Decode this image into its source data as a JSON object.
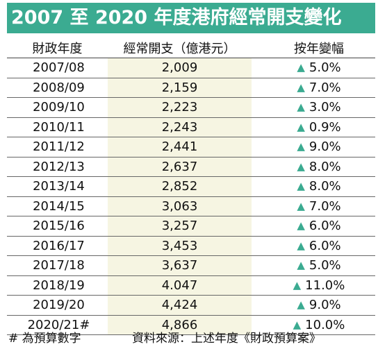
{
  "title": "2007 至 2020 年度港府經常開支變化",
  "headers": {
    "year": "財政年度",
    "amount": "經常開支（億港元）",
    "change": "按年變幅"
  },
  "change_icon": "triangle-up-icon",
  "accent_color": "#3bab91",
  "rows": [
    {
      "year": "2007/08",
      "amount": "2,009",
      "change": "5.0%"
    },
    {
      "year": "2008/09",
      "amount": "2,159",
      "change": "7.0%"
    },
    {
      "year": "2009/10",
      "amount": "2,223",
      "change": "3.0%"
    },
    {
      "year": "2010/11",
      "amount": "2,243",
      "change": "0.9%"
    },
    {
      "year": "2011/12",
      "amount": "2,441",
      "change": "9.0%"
    },
    {
      "year": "2012/13",
      "amount": "2,637",
      "change": "8.0%"
    },
    {
      "year": "2013/14",
      "amount": "2,852",
      "change": "8.0%"
    },
    {
      "year": "2014/15",
      "amount": "3,063",
      "change": "7.0%"
    },
    {
      "year": "2015/16",
      "amount": "3,257",
      "change": "6.0%"
    },
    {
      "year": "2016/17",
      "amount": "3,453",
      "change": "6.0%"
    },
    {
      "year": "2017/18",
      "amount": "3,637",
      "change": "5.0%"
    },
    {
      "year": "2018/19",
      "amount": "4.047",
      "change": "11.0%"
    },
    {
      "year": "2019/20",
      "amount": "4,424",
      "change": "9.0%"
    },
    {
      "year": "2020/21#",
      "amount": "4,866",
      "change": "10.0%"
    }
  ],
  "footer": {
    "note": "# 為預算數字",
    "source": "資料來源：上述年度《財政預算案》"
  }
}
